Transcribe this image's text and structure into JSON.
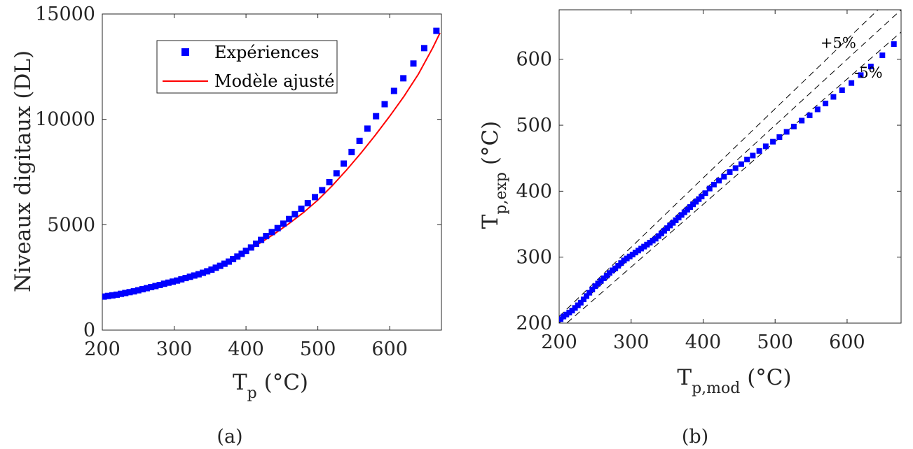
{
  "chart_data": [
    {
      "type": "scatter",
      "caption": "(a)",
      "ylabel": "Niveaux digitaux (DL)",
      "xlabel_main": "T",
      "xlabel_sub": "p",
      "xlabel_unit": " (°C)",
      "xlim": [
        200,
        672
      ],
      "ylim": [
        0,
        15000
      ],
      "xticks": [
        200,
        300,
        400,
        500,
        600
      ],
      "yticks": [
        0,
        5000,
        10000,
        15000
      ],
      "grid": false,
      "legend_position": "top-center",
      "colors": {
        "points": "#0000ff",
        "fit": "#ff0000"
      },
      "series": [
        {
          "name": "Expériences",
          "marker": "square",
          "x": [
            202,
            208,
            214,
            220,
            226,
            232,
            238,
            244,
            250,
            256,
            262,
            268,
            274,
            280,
            286,
            292,
            298,
            304,
            310,
            316,
            322,
            328,
            334,
            340,
            346,
            352,
            358,
            364,
            370,
            376,
            382,
            388,
            394,
            400,
            407,
            414,
            421,
            428,
            436,
            444,
            452,
            460,
            468,
            477,
            486,
            496,
            506,
            516,
            526,
            536,
            547,
            558,
            569,
            581,
            593,
            606,
            619,
            633,
            648,
            665
          ],
          "y": [
            1590,
            1620,
            1650,
            1680,
            1720,
            1760,
            1800,
            1840,
            1890,
            1940,
            1990,
            2040,
            2090,
            2140,
            2200,
            2250,
            2300,
            2350,
            2410,
            2470,
            2530,
            2590,
            2650,
            2720,
            2790,
            2870,
            2960,
            3050,
            3150,
            3250,
            3370,
            3490,
            3620,
            3760,
            3920,
            4100,
            4280,
            4460,
            4650,
            4840,
            5050,
            5270,
            5500,
            5760,
            6020,
            6310,
            6640,
            7020,
            7440,
            7900,
            8450,
            8980,
            9560,
            10150,
            10720,
            11350,
            11950,
            12650,
            13380,
            14200
          ]
        },
        {
          "name": "Modèle ajusté",
          "style": "line",
          "x": [
            200,
            220,
            240,
            260,
            280,
            300,
            320,
            340,
            360,
            380,
            400,
            420,
            440,
            460,
            480,
            500,
            520,
            540,
            560,
            580,
            600,
            620,
            640,
            660,
            670
          ],
          "y": [
            1500,
            1640,
            1800,
            1970,
            2160,
            2350,
            2560,
            2800,
            3060,
            3380,
            3730,
            4140,
            4580,
            5060,
            5580,
            6170,
            6850,
            7600,
            8400,
            9250,
            10150,
            11100,
            12150,
            13400,
            14100
          ]
        }
      ]
    },
    {
      "type": "scatter",
      "caption": "(b)",
      "xlabel_main": "T",
      "xlabel_sub": "p,mod",
      "xlabel_unit": " (°C)",
      "ylabel_main": "T",
      "ylabel_sub": "p,exp",
      "ylabel_unit": " (°C)",
      "xlim": [
        200,
        675
      ],
      "ylim": [
        200,
        675
      ],
      "xticks": [
        200,
        300,
        400,
        500,
        600
      ],
      "yticks": [
        200,
        300,
        400,
        500,
        600
      ],
      "grid": false,
      "colors": {
        "points": "#0000ff",
        "bounds": "#000000"
      },
      "annotations": [
        {
          "text": "+5%",
          "x": 563,
          "y": 617
        },
        {
          "text": "-5%",
          "x": 610,
          "y": 572
        }
      ],
      "reference_lines": [
        {
          "label": "+5%",
          "factor": 1.05,
          "style": "dashed"
        },
        {
          "label": "",
          "factor": 1.0,
          "style": "dashed"
        },
        {
          "label": "-5%",
          "factor": 0.95,
          "style": "dashed"
        }
      ],
      "series": [
        {
          "marker": "square",
          "x": [
            202,
            206,
            210,
            214,
            218,
            222,
            226,
            230,
            234,
            238,
            242,
            246,
            250,
            254,
            258,
            262,
            266,
            270,
            274,
            278,
            282,
            286,
            290,
            294,
            298,
            302,
            306,
            310,
            314,
            318,
            322,
            326,
            330,
            334,
            338,
            342,
            346,
            350,
            354,
            358,
            362,
            366,
            370,
            374,
            378,
            382,
            386,
            390,
            394,
            398,
            403,
            409,
            415,
            422,
            429,
            437,
            445,
            453,
            461,
            469,
            478,
            487,
            497,
            506,
            516,
            526,
            537,
            548,
            559,
            570,
            581,
            593,
            606,
            619,
            633,
            649,
            665
          ],
          "y": [
            206,
            210,
            213,
            216,
            219,
            223,
            227,
            231,
            236,
            241,
            246,
            251,
            256,
            260,
            264,
            268,
            272,
            276,
            280,
            283,
            287,
            291,
            295,
            298,
            301,
            304,
            307,
            310,
            313,
            316,
            319,
            322,
            325,
            328,
            332,
            336,
            340,
            344,
            348,
            352,
            356,
            360,
            364,
            368,
            372,
            376,
            380,
            384,
            388,
            392,
            397,
            404,
            410,
            416,
            422,
            429,
            435,
            441,
            448,
            454,
            461,
            468,
            475,
            482,
            490,
            498,
            507,
            515,
            524,
            533,
            543,
            553,
            564,
            576,
            589,
            606,
            623
          ]
        }
      ]
    }
  ]
}
